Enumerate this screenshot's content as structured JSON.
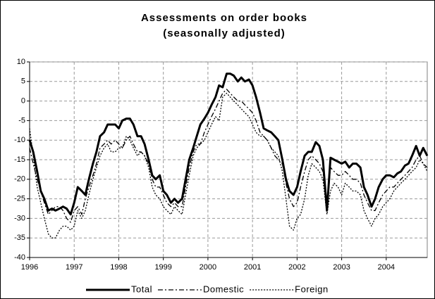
{
  "chart_data": {
    "type": "line",
    "title": "Assessments on order books",
    "subtitle": "(seasonally adjusted)",
    "x": [
      1996,
      1996.08,
      1996.17,
      1996.25,
      1996.33,
      1996.42,
      1996.5,
      1996.58,
      1996.67,
      1996.75,
      1996.83,
      1996.92,
      1997,
      1997.08,
      1997.17,
      1997.25,
      1997.33,
      1997.42,
      1997.5,
      1997.58,
      1997.67,
      1997.75,
      1997.83,
      1997.92,
      1998,
      1998.08,
      1998.17,
      1998.25,
      1998.33,
      1998.42,
      1998.5,
      1998.58,
      1998.67,
      1998.75,
      1998.83,
      1998.92,
      1999,
      1999.08,
      1999.17,
      1999.25,
      1999.33,
      1999.42,
      1999.5,
      1999.58,
      1999.67,
      1999.75,
      1999.83,
      1999.92,
      2000,
      2000.08,
      2000.17,
      2000.25,
      2000.33,
      2000.42,
      2000.5,
      2000.58,
      2000.67,
      2000.75,
      2000.83,
      2000.92,
      2001,
      2001.08,
      2001.17,
      2001.25,
      2001.33,
      2001.42,
      2001.5,
      2001.58,
      2001.67,
      2001.75,
      2001.83,
      2001.92,
      2002,
      2002.08,
      2002.17,
      2002.25,
      2002.33,
      2002.42,
      2002.5,
      2002.58,
      2002.67,
      2002.75,
      2002.83,
      2002.92,
      2003,
      2003.08,
      2003.17,
      2003.25,
      2003.33,
      2003.42,
      2003.5,
      2003.58,
      2003.67,
      2003.75,
      2003.83,
      2003.92,
      2004,
      2004.08,
      2004.17,
      2004.25,
      2004.33,
      2004.42,
      2004.5,
      2004.58,
      2004.67,
      2004.75,
      2004.83,
      2004.92
    ],
    "series": [
      {
        "name": "Total",
        "color": "#000000",
        "style": "solid",
        "values": [
          -10,
          -13,
          -18,
          -23,
          -25,
          -28,
          -27.5,
          -28,
          -27.5,
          -27,
          -27.5,
          -29,
          -26,
          -22,
          -23,
          -24,
          -20,
          -16,
          -13,
          -9,
          -8,
          -6,
          -6,
          -6,
          -7,
          -5,
          -4.5,
          -4.5,
          -6,
          -9,
          -9,
          -11,
          -15,
          -19,
          -20,
          -19,
          -23,
          -24,
          -26,
          -25,
          -26,
          -25,
          -20,
          -15,
          -12,
          -9,
          -6,
          -4.5,
          -3,
          -1,
          1,
          4,
          3.5,
          7,
          7,
          6.5,
          5,
          6,
          5,
          5.5,
          4,
          1,
          -3,
          -7,
          -7.5,
          -8,
          -9,
          -10,
          -15,
          -20,
          -23,
          -24,
          -22,
          -18,
          -14,
          -13,
          -13,
          -10.5,
          -11.5,
          -15,
          -28,
          -14.5,
          -15,
          -15.5,
          -16,
          -15.5,
          -17,
          -16,
          -16,
          -17,
          -22,
          -24,
          -27,
          -25,
          -22,
          -20,
          -19,
          -19,
          -19.5,
          -18.5,
          -18,
          -16.5,
          -16,
          -14,
          -11.5,
          -14,
          -12,
          -14
        ]
      },
      {
        "name": "Domestic",
        "color": "#000000",
        "style": "dashdot",
        "values": [
          -12,
          -16,
          -20,
          -23,
          -26,
          -29,
          -28,
          -27,
          -27,
          -28,
          -30,
          -31,
          -28,
          -27,
          -29,
          -25,
          -22,
          -19,
          -16,
          -12,
          -11,
          -10,
          -11,
          -10,
          -11,
          -12,
          -10,
          -9,
          -11,
          -13,
          -13,
          -14,
          -16,
          -20,
          -22,
          -22,
          -24,
          -26,
          -27,
          -26,
          -27,
          -27,
          -22,
          -17,
          -13,
          -11,
          -11,
          -8,
          -6,
          -4,
          -2,
          0,
          2,
          3,
          2,
          1,
          0,
          0,
          -1,
          -2,
          -3,
          -5,
          -8,
          -9,
          -10,
          -12,
          -14,
          -15,
          -16,
          -21,
          -25,
          -27,
          -26,
          -22,
          -18,
          -15,
          -14,
          -15,
          -16,
          -18,
          -28,
          -17,
          -18,
          -19,
          -19,
          -18,
          -19,
          -20,
          -20,
          -21,
          -24,
          -26,
          -28,
          -28,
          -26,
          -24,
          -23,
          -22,
          -22,
          -21,
          -20,
          -19,
          -18,
          -17,
          -15,
          -14,
          -16,
          -17
        ]
      },
      {
        "name": "Foreign",
        "color": "#000000",
        "style": "dotted",
        "values": [
          -7,
          -14,
          -22,
          -26,
          -30,
          -34,
          -35,
          -35,
          -33,
          -32,
          -32,
          -33,
          -32,
          -28,
          -30,
          -28,
          -24,
          -20,
          -17,
          -14,
          -12,
          -11,
          -13,
          -13,
          -12,
          -12,
          -9,
          -10,
          -12,
          -14,
          -13,
          -14,
          -17,
          -22,
          -24,
          -25,
          -27,
          -28,
          -29,
          -27,
          -28,
          -29,
          -24,
          -19,
          -14,
          -12,
          -11,
          -10,
          -8,
          -6,
          -4,
          -5,
          1,
          2,
          1,
          0,
          -1,
          -2,
          -3,
          -4,
          -6,
          -8,
          -9,
          -9,
          -10,
          -12,
          -13,
          -14,
          -18,
          -25,
          -32,
          -33,
          -30,
          -29,
          -25,
          -19,
          -16,
          -17,
          -18,
          -20,
          -29,
          -23,
          -21,
          -22,
          -24,
          -21,
          -22,
          -23,
          -23,
          -24,
          -28,
          -30,
          -32,
          -30,
          -29,
          -27,
          -26,
          -25,
          -23,
          -22,
          -21,
          -20,
          -19,
          -18,
          -17,
          -15,
          -16,
          -18
        ]
      }
    ],
    "xlim": [
      1996,
      2004.92
    ],
    "xticks": [
      1996,
      1997,
      1998,
      1999,
      2000,
      2001,
      2002,
      2003,
      2004
    ],
    "ylim": [
      -40,
      10
    ],
    "yticks": [
      -40,
      -35,
      -30,
      -25,
      -20,
      -15,
      -10,
      -5,
      0,
      5,
      10
    ],
    "grid": true,
    "legend": "bottom"
  }
}
